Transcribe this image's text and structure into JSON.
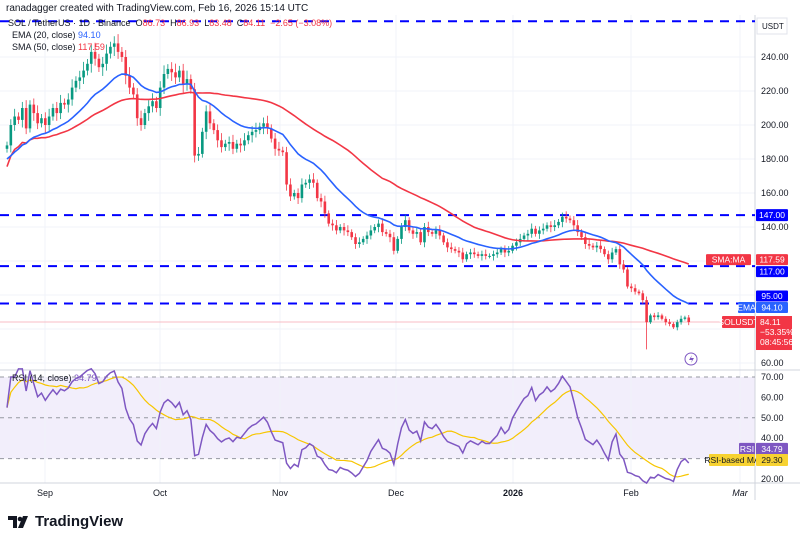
{
  "credit": "ranadagger created with TradingView.com, Feb 16, 2026 15:14 UTC",
  "header": {
    "symbol": "SOL / TetherUS · 1D · Binance",
    "o_label": "O",
    "o": "86.73",
    "h_label": "H",
    "h": "86.93",
    "l_label": "L",
    "l": "83.48",
    "c_label": "C",
    "c": "84.11",
    "change": "−2.65 (−3.08%)"
  },
  "legend": {
    "ema_label": "EMA (20, close)",
    "ema_value": "94.10",
    "sma_label": "SMA (50, close)",
    "sma_value": "117.59",
    "rsi_label": "RSI (14, close)",
    "rsi_value": "34.79"
  },
  "axis": {
    "currency": "USDT",
    "price_ticks": [
      "240.00",
      "220.00",
      "200.00",
      "180.00",
      "160.00",
      "140.00",
      "60.00"
    ],
    "rsi_ticks": [
      "70.00",
      "60.00",
      "50.00",
      "40.00",
      "20.00"
    ],
    "x_ticks": [
      "Sep",
      "Oct",
      "Nov",
      "Dec",
      "2026",
      "Feb",
      "Mar"
    ]
  },
  "labels": {
    "level_147": "147.00",
    "level_117": "117.00",
    "level_95": "95.00",
    "sma_tag": "SMA:MA",
    "sma_price": "117.59",
    "ema_tag": "EMA",
    "ema_price": "94.10",
    "symbol_tag": "SOLUSDT",
    "last_price": "84.11",
    "last_change": "−53.35%",
    "countdown": "08:45:56",
    "rsi_tag": "RSI",
    "rsi_price": "34.79",
    "rsi_ma_tag": "RSI-based MA",
    "rsi_ma_price": "29.30"
  },
  "logo": "TradingView",
  "colors": {
    "up": "#089981",
    "down": "#f23645",
    "ema": "#2962ff",
    "sma": "#f23645",
    "rsi": "#7e57c2",
    "rsi_ma": "#f7c600",
    "levels": "#0000ff"
  },
  "chart_data": {
    "type": "candlestick",
    "interval": "1D",
    "start_date": "2025-08-22",
    "end_date": "2026-02-16",
    "ylim": [
      55,
      262
    ],
    "rsi_ylim": [
      15,
      75
    ],
    "levels": [
      261,
      147,
      117,
      95
    ],
    "closes": [
      188,
      200,
      205,
      203,
      210,
      198,
      212,
      207,
      201,
      204,
      200,
      205,
      210,
      207,
      213,
      212,
      215,
      222,
      226,
      228,
      232,
      236,
      243,
      239,
      234,
      236,
      242,
      246,
      248,
      243,
      240,
      229,
      222,
      218,
      204,
      200,
      207,
      211,
      214,
      210,
      222,
      230,
      233,
      231,
      228,
      232,
      224,
      227,
      221,
      182,
      183,
      196,
      208,
      201,
      197,
      191,
      187,
      189,
      190,
      186,
      189,
      188,
      191,
      194,
      196,
      197,
      199,
      201,
      198,
      192,
      186,
      185,
      184,
      165,
      158,
      160,
      157,
      165,
      166,
      168,
      166,
      157,
      155,
      148,
      142,
      141,
      138,
      140,
      138,
      137,
      134,
      130,
      131,
      133,
      135,
      138,
      140,
      142,
      137,
      136,
      134,
      126,
      133,
      140,
      144,
      138,
      136,
      137,
      131,
      140,
      137,
      136,
      138,
      135,
      131,
      128,
      127,
      126,
      125,
      121,
      124,
      125,
      124,
      123,
      124,
      123,
      123,
      124,
      125,
      127,
      125,
      126,
      129,
      131,
      133,
      135,
      136,
      139,
      136,
      138,
      139,
      141,
      140,
      141,
      143,
      146,
      145,
      144,
      141,
      137,
      134,
      130,
      129,
      128,
      129,
      127,
      124,
      121,
      125,
      127,
      118,
      115,
      105,
      104,
      102,
      101,
      97,
      84,
      88,
      87,
      88,
      86,
      84,
      83,
      81,
      84,
      86,
      86.76,
      84.11
    ]
  }
}
